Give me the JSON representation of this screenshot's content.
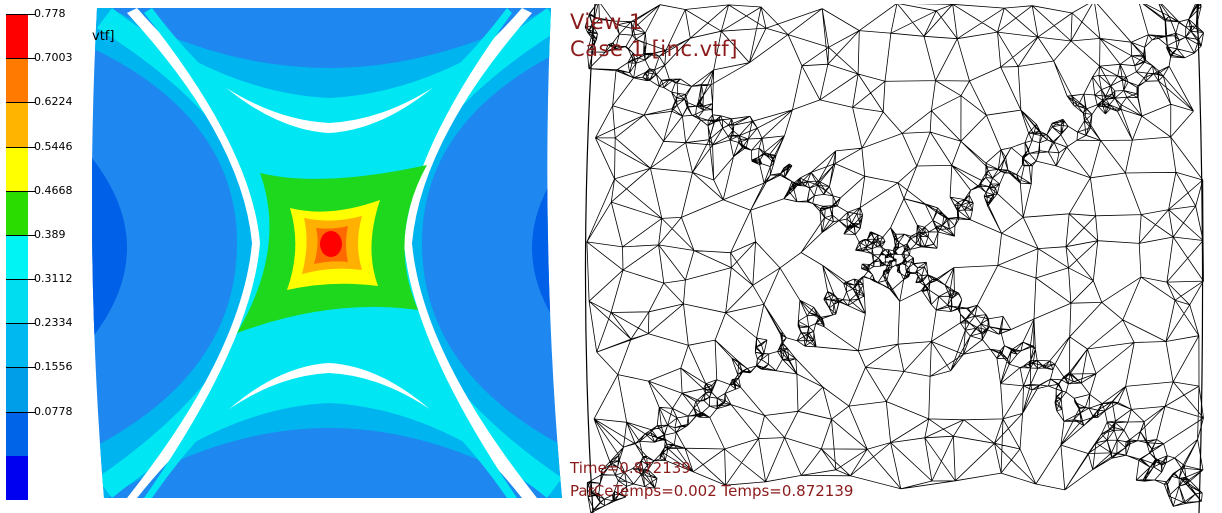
{
  "legend": {
    "labels": [
      "0.778",
      "0.7003",
      "0.6224",
      "0.5446",
      "0.4668",
      "0.389",
      "0.3112",
      "0.2334",
      "0.1556",
      "0.0778"
    ],
    "colors": [
      "#ff0000",
      "#ff7a00",
      "#ffb400",
      "#ffff00",
      "#2bdc00",
      "#00f4f4",
      "#00dcf0",
      "#00b8f0",
      "#009ee8",
      "#0064e8",
      "#0000f0"
    ]
  },
  "left_view": {
    "partial_text": "vtf]",
    "colors": {
      "outer": "#1e88f0",
      "band1": "#00b4f0",
      "band2": "#00e6f2",
      "band3": "#ffffff",
      "green": "#1ed81e",
      "yellow": "#ffff00",
      "orange": "#ffb000",
      "dark_orange": "#ff6a00",
      "red": "#ff0000",
      "side_dark": "#0060e8"
    }
  },
  "right_view": {
    "view_label": "View 1",
    "case_label": "Case 1 [inc.vtf]",
    "time_label": "Time=0.872139",
    "bottom_label": "ParCeTemps=0.002      Temps=0.872139"
  }
}
